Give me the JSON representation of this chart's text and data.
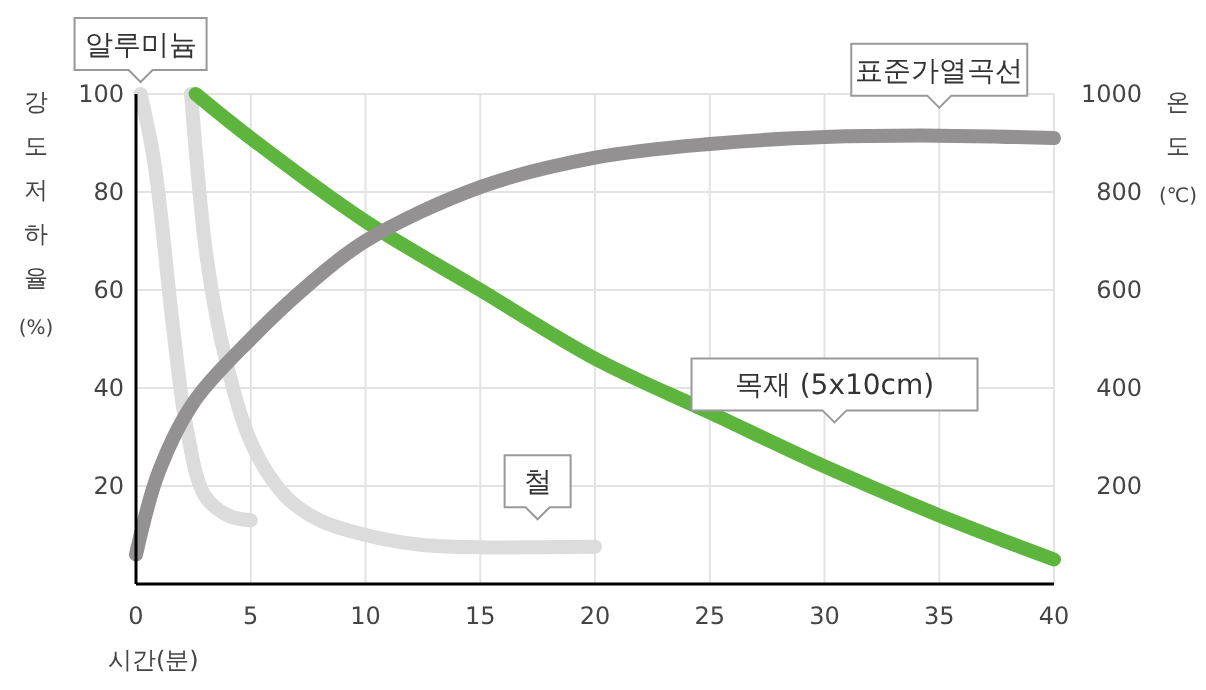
{
  "chart_data": {
    "type": "line",
    "xlabel": "시간(분)",
    "ylabel": "강도저하율 (%)",
    "y2label": "온도 (℃)",
    "xlim": [
      0,
      40
    ],
    "xticks": [
      0,
      5,
      10,
      15,
      20,
      25,
      30,
      35,
      40
    ],
    "ylim": [
      0,
      100
    ],
    "yticks": [
      20,
      40,
      60,
      80,
      100
    ],
    "y2lim": [
      0,
      1000
    ],
    "y2ticks": [
      200,
      400,
      600,
      800,
      1000
    ],
    "grid": true,
    "marker": "none",
    "line_style": "solid",
    "series": [
      {
        "name": "알루미늄",
        "color": "#dcdcdc",
        "x": [
          0.2,
          0.8,
          1.6,
          2.2,
          3.0,
          4.0,
          5.0
        ],
        "values": [
          100,
          86,
          53,
          32,
          18,
          14,
          13
        ]
      },
      {
        "name": "철",
        "color": "#dcdcdc",
        "x": [
          2.4,
          3.1,
          3.9,
          5.1,
          6.5,
          8,
          10,
          12.4,
          15,
          17.5,
          20
        ],
        "values": [
          100,
          66,
          46,
          28,
          18,
          13,
          10,
          8,
          7.5,
          7.5,
          7.6
        ]
      },
      {
        "name": "목재 (5x10cm)",
        "color": "#5db53e",
        "x": [
          2.6,
          5,
          10,
          15,
          20,
          25,
          30,
          35,
          40
        ],
        "values": [
          100,
          91,
          74,
          60,
          46,
          35,
          24,
          14,
          5
        ]
      },
      {
        "name": "표준가열곡선",
        "color": "#939192",
        "axis": "y2",
        "x": [
          0,
          1,
          2.5,
          5,
          7.5,
          10,
          15,
          20,
          25,
          30,
          35,
          40
        ],
        "values": [
          60,
          230,
          370,
          500,
          610,
          700,
          810,
          870,
          898,
          912,
          915,
          910
        ]
      }
    ]
  }
}
